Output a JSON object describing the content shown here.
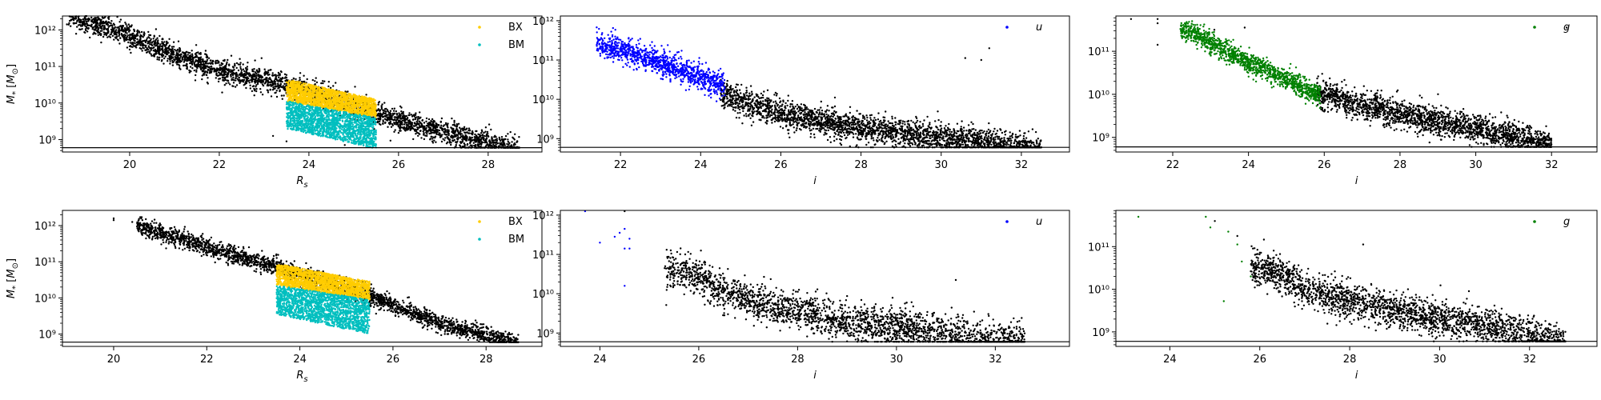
{
  "chart_data": [
    {
      "id": "top-left",
      "type": "scatter",
      "xlabel": "R_s",
      "ylabel": "M_* [M_⊙]",
      "xlim": [
        18.5,
        29.2
      ],
      "ylim_log10": [
        8.66,
        12.38
      ],
      "yscale": "log",
      "xticks": [
        20,
        22,
        24,
        26,
        28
      ],
      "yticks": [
        {
          "value": 1000000000.0,
          "label": "10⁹"
        },
        {
          "value": 10000000000.0,
          "label": "10¹⁰"
        },
        {
          "value": 100000000000.0,
          "label": "10¹¹"
        },
        {
          "value": 1000000000000.0,
          "label": "10¹²"
        }
      ],
      "hline": 600000000,
      "legend": {
        "placement": "top-right",
        "entries": [
          {
            "name": "BX",
            "color": "#ffcc00"
          },
          {
            "name": "BM",
            "color": "#00bfbf"
          }
        ]
      },
      "series": [
        {
          "role": "cloud",
          "color": "#000000",
          "spine": [
            [
              18.6,
              12.4
            ],
            [
              20,
              11.85
            ],
            [
              21,
              11.3
            ],
            [
              22,
              10.9
            ],
            [
              23.5,
              10.5
            ],
            [
              25.5,
              9.7
            ],
            [
              27,
              9.2
            ],
            [
              28.6,
              8.75
            ]
          ],
          "spread": 0.28,
          "max_x": 28.7
        },
        {
          "name": "BX",
          "role": "band",
          "color": "#ffcc00",
          "xrange": [
            23.5,
            25.5
          ],
          "top": [
            [
              23.5,
              10.65
            ],
            [
              25.5,
              10.1
            ]
          ],
          "bottom": [
            [
              23.5,
              10.05
            ],
            [
              25.5,
              9.6
            ]
          ]
        },
        {
          "name": "BM",
          "role": "band",
          "color": "#00bfbf",
          "xrange": [
            23.5,
            25.5
          ],
          "top": [
            [
              23.5,
              10.05
            ],
            [
              25.5,
              9.6
            ]
          ],
          "bottom": [
            [
              23.5,
              9.3
            ],
            [
              25.5,
              8.75
            ]
          ]
        },
        {
          "role": "sparse",
          "color": "#000000",
          "points": [
            [
              18.8,
              12.45
            ],
            [
              18.6,
              12.15
            ],
            [
              19.3,
              11.95
            ],
            [
              19.9,
              12.2
            ],
            [
              20.0,
              12.1
            ],
            [
              23.2,
              9.1
            ],
            [
              23.5,
              8.95
            ],
            [
              24.8,
              8.85
            ]
          ]
        }
      ]
    },
    {
      "id": "top-middle",
      "type": "scatter",
      "xlabel": "i",
      "ylabel": "",
      "xlim": [
        20.5,
        33.2
      ],
      "ylim_log10": [
        8.66,
        12.12
      ],
      "yscale": "log",
      "xticks": [
        22,
        24,
        26,
        28,
        30,
        32
      ],
      "yticks": [
        {
          "value": 1000000000.0,
          "label": "10⁹"
        },
        {
          "value": 10000000000.0,
          "label": "10¹⁰"
        },
        {
          "value": 100000000000.0,
          "label": "10¹¹"
        },
        {
          "value": 1000000000000.0,
          "label": "10¹²"
        }
      ],
      "hline": 600000000,
      "legend": {
        "placement": "top-right",
        "entries": [
          {
            "name": "u",
            "color": "#0000ff"
          }
        ]
      },
      "series": [
        {
          "role": "cloud",
          "color": "#000000",
          "spine": [
            [
              24.5,
              10.2
            ],
            [
              25,
              9.95
            ],
            [
              26,
              9.65
            ],
            [
              27.5,
              9.35
            ],
            [
              29,
              9.15
            ],
            [
              30.5,
              8.95
            ],
            [
              32.3,
              8.75
            ]
          ],
          "spread": 0.32,
          "max_x": 32.5
        },
        {
          "name": "u",
          "role": "cloud",
          "color": "#0000ff",
          "spine": [
            [
              21.5,
              11.4
            ],
            [
              22.5,
              11.1
            ],
            [
              23.5,
              10.75
            ],
            [
              24.5,
              10.35
            ]
          ],
          "spread": 0.28,
          "max_x": 24.6,
          "min_x": 21.4
        },
        {
          "role": "sparse",
          "color": "#000000",
          "points": [
            [
              30.6,
              11.05
            ],
            [
              31.2,
              11.3
            ],
            [
              31.0,
              11.0
            ]
          ]
        }
      ]
    },
    {
      "id": "top-right",
      "type": "scatter",
      "xlabel": "i",
      "ylabel": "",
      "xlim": [
        20.5,
        33.2
      ],
      "ylim_log10": [
        8.66,
        11.82
      ],
      "yscale": "log",
      "xticks": [
        22,
        24,
        26,
        28,
        30,
        32
      ],
      "yticks": [
        {
          "value": 1000000000.0,
          "label": "10⁹"
        },
        {
          "value": 10000000000.0,
          "label": "10¹⁰"
        },
        {
          "value": 100000000000.0,
          "label": "10¹¹"
        }
      ],
      "hline": 600000000,
      "legend": {
        "placement": "top-right",
        "entries": [
          {
            "name": "g",
            "color": "#008000"
          }
        ]
      },
      "series": [
        {
          "role": "cloud",
          "color": "#000000",
          "spine": [
            [
              25.8,
              10.05
            ],
            [
              27,
              9.75
            ],
            [
              28.5,
              9.45
            ],
            [
              30,
              9.2
            ],
            [
              31.8,
              8.85
            ]
          ],
          "spread": 0.3,
          "max_x": 32.0
        },
        {
          "name": "g",
          "role": "cloud",
          "color": "#008000",
          "spine": [
            [
              22.5,
              11.45
            ],
            [
              23.5,
              10.95
            ],
            [
              24.5,
              10.55
            ],
            [
              25.8,
              10.0
            ]
          ],
          "spread": 0.22,
          "max_x": 25.9,
          "min_x": 22.2
        },
        {
          "role": "sparse",
          "color": "#000000",
          "points": [
            [
              20.9,
              11.75
            ],
            [
              21.6,
              11.75
            ],
            [
              21.6,
              11.65
            ],
            [
              21.6,
              11.15
            ],
            [
              23.1,
              11.5
            ],
            [
              23.9,
              11.55
            ],
            [
              32.4,
              11.55
            ]
          ]
        }
      ]
    },
    {
      "id": "bottom-left",
      "type": "scatter",
      "xlabel": "R_s",
      "ylabel": "M_* [M_⊙]",
      "xlim": [
        18.9,
        29.2
      ],
      "ylim_log10": [
        8.66,
        12.42
      ],
      "yscale": "log",
      "xticks": [
        20,
        22,
        24,
        26,
        28
      ],
      "yticks": [
        {
          "value": 1000000000.0,
          "label": "10⁹"
        },
        {
          "value": 10000000000.0,
          "label": "10¹⁰"
        },
        {
          "value": 100000000000.0,
          "label": "10¹¹"
        },
        {
          "value": 1000000000000.0,
          "label": "10¹²"
        }
      ],
      "hline": 600000000,
      "legend": {
        "placement": "top-right",
        "entries": [
          {
            "name": "BX",
            "color": "#ffcc00"
          },
          {
            "name": "BM",
            "color": "#00bfbf"
          }
        ]
      },
      "series": [
        {
          "role": "cloud",
          "color": "#000000",
          "spine": [
            [
              20.5,
              12.0
            ],
            [
              22,
              11.4
            ],
            [
              23.5,
              10.85
            ],
            [
              25.5,
              10.05
            ],
            [
              27,
              9.3
            ],
            [
              28.6,
              8.75
            ]
          ],
          "spread": 0.22,
          "max_x": 28.7
        },
        {
          "name": "BX",
          "role": "band",
          "color": "#ffcc00",
          "xrange": [
            23.5,
            25.5
          ],
          "top": [
            [
              23.5,
              10.95
            ],
            [
              25.5,
              10.45
            ]
          ],
          "bottom": [
            [
              23.5,
              10.35
            ],
            [
              25.5,
              9.95
            ]
          ]
        },
        {
          "name": "BM",
          "role": "band",
          "color": "#00bfbf",
          "xrange": [
            23.5,
            25.5
          ],
          "top": [
            [
              23.5,
              10.35
            ],
            [
              25.5,
              9.95
            ]
          ],
          "bottom": [
            [
              23.5,
              9.55
            ],
            [
              25.5,
              9.0
            ]
          ]
        },
        {
          "role": "sparse",
          "color": "#000000",
          "points": [
            [
              19.3,
              12.45
            ],
            [
              20.0,
              12.2
            ],
            [
              20.0,
              12.15
            ],
            [
              20.4,
              12.1
            ]
          ]
        }
      ]
    },
    {
      "id": "bottom-middle",
      "type": "scatter",
      "xlabel": "i",
      "ylabel": "",
      "xlim": [
        23.2,
        33.5
      ],
      "ylim_log10": [
        8.66,
        12.12
      ],
      "yscale": "log",
      "xticks": [
        24,
        26,
        28,
        30,
        32
      ],
      "yticks": [
        {
          "value": 1000000000.0,
          "label": "10⁹"
        },
        {
          "value": 10000000000.0,
          "label": "10¹⁰"
        },
        {
          "value": 100000000000.0,
          "label": "10¹¹"
        },
        {
          "value": 1000000000000.0,
          "label": "10¹²"
        }
      ],
      "hline": 600000000,
      "legend": {
        "placement": "top-right",
        "entries": [
          {
            "name": "u",
            "color": "#0000ff"
          }
        ]
      },
      "series": [
        {
          "role": "cloud",
          "color": "#000000",
          "spine": [
            [
              25.8,
              10.55
            ],
            [
              26.5,
              10.05
            ],
            [
              27.5,
              9.65
            ],
            [
              29,
              9.3
            ],
            [
              30.5,
              9.05
            ],
            [
              32.2,
              8.78
            ]
          ],
          "spread": 0.42,
          "max_x": 32.6,
          "min_x": 25.3
        },
        {
          "name": "u",
          "role": "sparse",
          "color": "#0000ff",
          "points": [
            [
              23.7,
              12.1
            ],
            [
              24.0,
              11.3
            ],
            [
              24.3,
              11.45
            ],
            [
              24.4,
              11.55
            ],
            [
              24.5,
              11.65
            ],
            [
              24.5,
              11.15
            ],
            [
              24.6,
              11.15
            ],
            [
              24.6,
              11.4
            ],
            [
              24.5,
              10.2
            ]
          ]
        },
        {
          "role": "sparse",
          "color": "#000000",
          "points": [
            [
              24.5,
              12.1
            ],
            [
              31.2,
              10.35
            ]
          ]
        }
      ]
    },
    {
      "id": "bottom-right",
      "type": "scatter",
      "xlabel": "i",
      "ylabel": "",
      "xlim": [
        22.8,
        33.5
      ],
      "ylim_log10": [
        8.66,
        11.85
      ],
      "yscale": "log",
      "xticks": [
        24,
        26,
        28,
        30,
        32
      ],
      "yticks": [
        {
          "value": 1000000000.0,
          "label": "10⁹"
        },
        {
          "value": 10000000000.0,
          "label": "10¹⁰"
        },
        {
          "value": 100000000000.0,
          "label": "10¹¹"
        }
      ],
      "hline": 600000000,
      "legend": {
        "placement": "top-right",
        "entries": [
          {
            "name": "g",
            "color": "#008000"
          }
        ]
      },
      "series": [
        {
          "role": "cloud",
          "color": "#000000",
          "spine": [
            [
              26.2,
              10.5
            ],
            [
              27,
              10.0
            ],
            [
              28.5,
              9.6
            ],
            [
              30,
              9.3
            ],
            [
              31.5,
              9.05
            ],
            [
              32.6,
              8.78
            ]
          ],
          "spread": 0.38,
          "max_x": 32.8,
          "min_x": 25.8
        },
        {
          "name": "g",
          "role": "sparse",
          "color": "#008000",
          "points": [
            [
              23.3,
              11.7
            ],
            [
              24.8,
              11.7
            ],
            [
              24.9,
              11.45
            ],
            [
              25.3,
              11.35
            ],
            [
              25.5,
              11.05
            ],
            [
              25.6,
              10.65
            ],
            [
              25.2,
              9.72
            ],
            [
              25.8,
              10.3
            ]
          ]
        },
        {
          "role": "sparse",
          "color": "#000000",
          "points": [
            [
              25.0,
              11.6
            ],
            [
              25.5,
              11.25
            ],
            [
              28.3,
              11.05
            ]
          ]
        }
      ]
    }
  ]
}
